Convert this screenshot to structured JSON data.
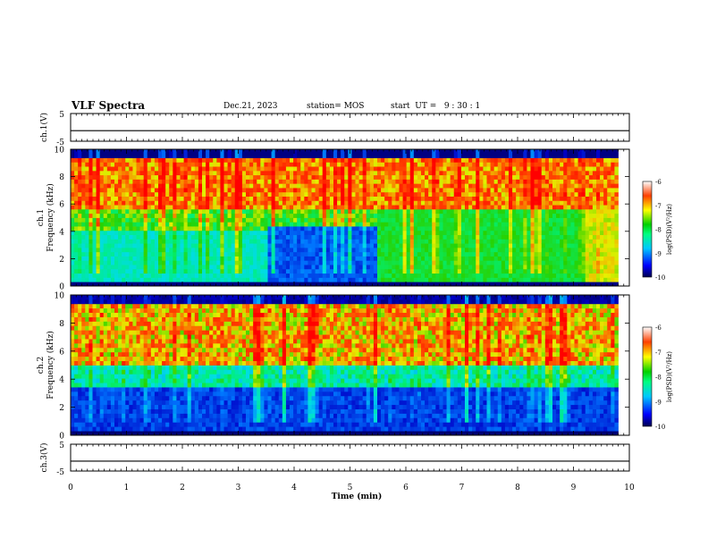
{
  "header": {
    "title": "VLF Spectra",
    "date": "Dec.21, 2023",
    "station": "station= MOS",
    "start": "start  UT =   9 : 30 : 1"
  },
  "chart_data": [
    {
      "type": "line",
      "ylabel": "ch.1(V)",
      "ylim": [
        -5,
        5
      ],
      "yticks": [
        "5",
        "-5"
      ],
      "x": [
        0,
        10
      ],
      "values": [
        -1.2,
        -1.2
      ],
      "xlim": [
        0,
        10
      ]
    },
    {
      "type": "heatmap",
      "ylabel": "ch.1",
      "ylabel2": "Frequency (kHz)",
      "ylim": [
        0,
        10
      ],
      "yticks": [
        "0",
        "2",
        "4",
        "6",
        "8",
        "10"
      ],
      "xlim": [
        0,
        9.8
      ],
      "colorbar": {
        "label": "log(PSD)(V²/Hz)",
        "ticks": [
          "-6",
          "-7",
          "-8",
          "-9",
          "-10"
        ],
        "range": [
          -10,
          -6
        ]
      }
    },
    {
      "type": "heatmap",
      "ylabel": "ch.2",
      "ylabel2": "Frequency (kHz)",
      "ylim": [
        0,
        10
      ],
      "yticks": [
        "0",
        "2",
        "4",
        "6",
        "8",
        "10"
      ],
      "xlim": [
        0,
        9.8
      ],
      "colorbar": {
        "label": "log(PSD)(V²/Hz)",
        "ticks": [
          "-6",
          "-7",
          "-8",
          "-9",
          "-10"
        ],
        "range": [
          -10,
          -6
        ]
      }
    },
    {
      "type": "line",
      "ylabel": "ch.3(V)",
      "ylim": [
        -5,
        5
      ],
      "yticks": [
        "5",
        "-5"
      ],
      "x": [
        0,
        10
      ],
      "values": [
        -1.3,
        -1.3
      ],
      "xlim": [
        0,
        10
      ]
    }
  ],
  "xaxis": {
    "label": "Time  (min)",
    "ticks": [
      "0",
      "1",
      "2",
      "3",
      "4",
      "5",
      "6",
      "7",
      "8",
      "9",
      "10"
    ],
    "range": [
      0,
      10
    ]
  }
}
